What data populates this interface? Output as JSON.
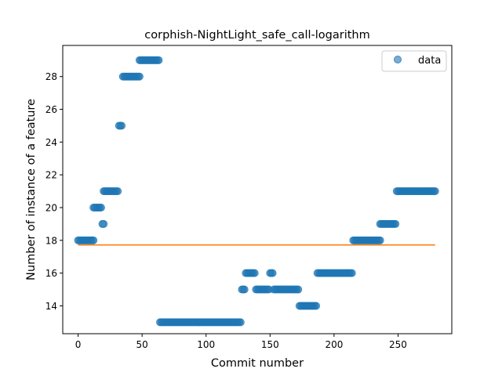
{
  "chart_data": {
    "type": "scatter",
    "title": "corphish-NightLight_safe_call-logarithm",
    "xlabel": "Commit number",
    "ylabel": "Number of instance of a feature",
    "xlim": [
      -12,
      292
    ],
    "ylim": [
      12.3,
      29.9
    ],
    "xticks": [
      0,
      50,
      100,
      150,
      200,
      250
    ],
    "yticks": [
      14,
      16,
      18,
      20,
      22,
      24,
      26,
      28
    ],
    "legend": {
      "position": "top-right",
      "entries": [
        "data"
      ]
    },
    "grid": false,
    "colors": {
      "points": "#1f77b4",
      "fit_line": "#ff7f0e"
    },
    "segments": [
      {
        "x_start": 0,
        "x_end": 12,
        "y": 18
      },
      {
        "x_start": 12,
        "x_end": 18,
        "y": 20
      },
      {
        "x_start": 19,
        "x_end": 20,
        "y": 19
      },
      {
        "x_start": 20,
        "x_end": 31,
        "y": 21
      },
      {
        "x_start": 32,
        "x_end": 34,
        "y": 25
      },
      {
        "x_start": 35,
        "x_end": 48,
        "y": 28
      },
      {
        "x_start": 48,
        "x_end": 63,
        "y": 29
      },
      {
        "x_start": 64,
        "x_end": 127,
        "y": 13
      },
      {
        "x_start": 128,
        "x_end": 130,
        "y": 15
      },
      {
        "x_start": 131,
        "x_end": 138,
        "y": 16
      },
      {
        "x_start": 139,
        "x_end": 149,
        "y": 15
      },
      {
        "x_start": 150,
        "x_end": 152,
        "y": 16
      },
      {
        "x_start": 153,
        "x_end": 172,
        "y": 15
      },
      {
        "x_start": 173,
        "x_end": 186,
        "y": 14
      },
      {
        "x_start": 187,
        "x_end": 214,
        "y": 16
      },
      {
        "x_start": 215,
        "x_end": 236,
        "y": 18
      },
      {
        "x_start": 236,
        "x_end": 248,
        "y": 19
      },
      {
        "x_start": 249,
        "x_end": 279,
        "y": 21
      }
    ],
    "fit_line": {
      "x": [
        0,
        279
      ],
      "y": [
        17.72,
        17.72
      ]
    }
  }
}
